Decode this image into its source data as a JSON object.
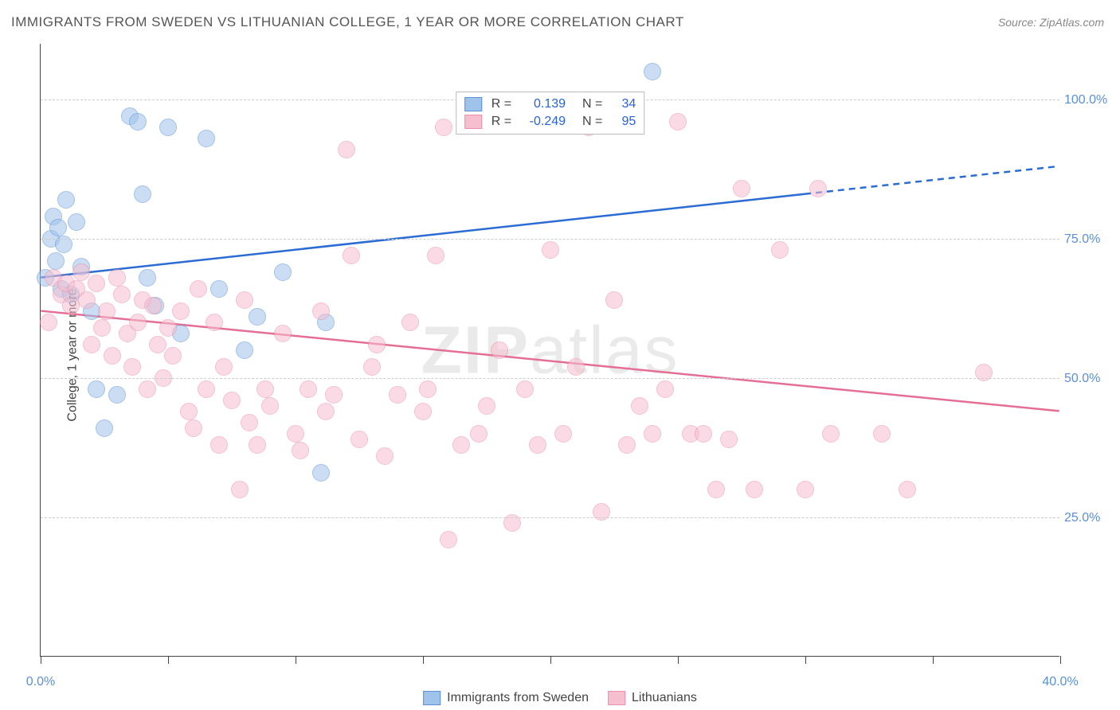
{
  "title": "IMMIGRANTS FROM SWEDEN VS LITHUANIAN COLLEGE, 1 YEAR OR MORE CORRELATION CHART",
  "source": "Source: ZipAtlas.com",
  "ylabel": "College, 1 year or more",
  "watermark_a": "ZIP",
  "watermark_b": "atlas",
  "chart": {
    "type": "scatter",
    "xlim": [
      0,
      40
    ],
    "ylim": [
      0,
      110
    ],
    "xticks": [
      0,
      5,
      10,
      15,
      20,
      25,
      30,
      35,
      40
    ],
    "xticklabels_visible": {
      "0": "0.0%",
      "40": "40.0%"
    },
    "yticks": [
      25,
      50,
      75,
      100
    ],
    "yticklabels": {
      "25": "25.0%",
      "50": "50.0%",
      "75": "75.0%",
      "100": "100.0%"
    },
    "background_color": "#ffffff",
    "grid_color": "#cccccc",
    "axis_color": "#444444",
    "label_fontsize": 16,
    "tick_color": "#5b8fd6",
    "marker_radius": 11,
    "marker_opacity": 0.55
  },
  "series": [
    {
      "name": "Immigrants from Sweden",
      "fill": "#9fc3ea",
      "stroke": "#5b8fd6",
      "line_color": "#2b6bd4",
      "R": "0.139",
      "N": "34",
      "trend": {
        "x1": 0,
        "y1": 68,
        "x2": 30,
        "y2": 83,
        "x2_dash": 40,
        "y2_dash": 88
      },
      "points": [
        [
          0.2,
          68
        ],
        [
          0.4,
          75
        ],
        [
          0.5,
          79
        ],
        [
          0.6,
          71
        ],
        [
          0.7,
          77
        ],
        [
          0.8,
          66
        ],
        [
          0.9,
          74
        ],
        [
          1.0,
          82
        ],
        [
          1.2,
          65
        ],
        [
          1.4,
          78
        ],
        [
          1.6,
          70
        ],
        [
          2.0,
          62
        ],
        [
          2.2,
          48
        ],
        [
          2.5,
          41
        ],
        [
          3.0,
          47
        ],
        [
          3.5,
          97
        ],
        [
          3.8,
          96
        ],
        [
          4.0,
          83
        ],
        [
          4.2,
          68
        ],
        [
          4.5,
          63
        ],
        [
          5.0,
          95
        ],
        [
          5.5,
          58
        ],
        [
          6.5,
          93
        ],
        [
          7.0,
          66
        ],
        [
          8.0,
          55
        ],
        [
          8.5,
          61
        ],
        [
          9.5,
          69
        ],
        [
          11.0,
          33
        ],
        [
          11.2,
          60
        ],
        [
          24.0,
          105
        ]
      ]
    },
    {
      "name": "Lithuanians",
      "fill": "#f6bfd0",
      "stroke": "#eb8fab",
      "line_color": "#e56f94",
      "R": "-0.249",
      "N": "95",
      "trend": {
        "x1": 0,
        "y1": 62,
        "x2": 40,
        "y2": 44
      },
      "points": [
        [
          0.3,
          60
        ],
        [
          0.5,
          68
        ],
        [
          0.8,
          65
        ],
        [
          1.0,
          67
        ],
        [
          1.2,
          63
        ],
        [
          1.4,
          66
        ],
        [
          1.6,
          69
        ],
        [
          1.8,
          64
        ],
        [
          2.0,
          56
        ],
        [
          2.2,
          67
        ],
        [
          2.4,
          59
        ],
        [
          2.6,
          62
        ],
        [
          2.8,
          54
        ],
        [
          3.0,
          68
        ],
        [
          3.2,
          65
        ],
        [
          3.4,
          58
        ],
        [
          3.6,
          52
        ],
        [
          3.8,
          60
        ],
        [
          4.0,
          64
        ],
        [
          4.2,
          48
        ],
        [
          4.4,
          63
        ],
        [
          4.6,
          56
        ],
        [
          4.8,
          50
        ],
        [
          5.0,
          59
        ],
        [
          5.2,
          54
        ],
        [
          5.5,
          62
        ],
        [
          5.8,
          44
        ],
        [
          6.0,
          41
        ],
        [
          6.2,
          66
        ],
        [
          6.5,
          48
        ],
        [
          6.8,
          60
        ],
        [
          7.0,
          38
        ],
        [
          7.2,
          52
        ],
        [
          7.5,
          46
        ],
        [
          7.8,
          30
        ],
        [
          8.0,
          64
        ],
        [
          8.2,
          42
        ],
        [
          8.5,
          38
        ],
        [
          8.8,
          48
        ],
        [
          9.0,
          45
        ],
        [
          9.5,
          58
        ],
        [
          10.0,
          40
        ],
        [
          10.2,
          37
        ],
        [
          10.5,
          48
        ],
        [
          11.0,
          62
        ],
        [
          11.2,
          44
        ],
        [
          11.5,
          47
        ],
        [
          12.0,
          91
        ],
        [
          12.2,
          72
        ],
        [
          12.5,
          39
        ],
        [
          13.0,
          52
        ],
        [
          13.2,
          56
        ],
        [
          13.5,
          36
        ],
        [
          14.0,
          47
        ],
        [
          14.5,
          60
        ],
        [
          15.0,
          44
        ],
        [
          15.2,
          48
        ],
        [
          15.5,
          72
        ],
        [
          15.8,
          95
        ],
        [
          16.0,
          21
        ],
        [
          16.5,
          38
        ],
        [
          17.0,
          98
        ],
        [
          17.2,
          40
        ],
        [
          17.5,
          45
        ],
        [
          18.0,
          55
        ],
        [
          18.5,
          24
        ],
        [
          19.0,
          48
        ],
        [
          19.5,
          38
        ],
        [
          20.0,
          73
        ],
        [
          20.5,
          40
        ],
        [
          21.0,
          52
        ],
        [
          21.5,
          95
        ],
        [
          22.0,
          26
        ],
        [
          22.5,
          64
        ],
        [
          23.0,
          38
        ],
        [
          23.5,
          45
        ],
        [
          24.0,
          40
        ],
        [
          24.5,
          48
        ],
        [
          25.0,
          96
        ],
        [
          25.5,
          40
        ],
        [
          26.0,
          40
        ],
        [
          26.5,
          30
        ],
        [
          27.0,
          39
        ],
        [
          27.5,
          84
        ],
        [
          28.0,
          30
        ],
        [
          29.0,
          73
        ],
        [
          30.0,
          30
        ],
        [
          30.5,
          84
        ],
        [
          31.0,
          40
        ],
        [
          33.0,
          40
        ],
        [
          34.0,
          30
        ],
        [
          37.0,
          51
        ]
      ]
    }
  ],
  "legend_bottom": [
    {
      "label": "Immigrants from Sweden",
      "fill": "#9fc3ea",
      "stroke": "#5b8fd6"
    },
    {
      "label": "Lithuanians",
      "fill": "#f6bfd0",
      "stroke": "#eb8fab"
    }
  ]
}
